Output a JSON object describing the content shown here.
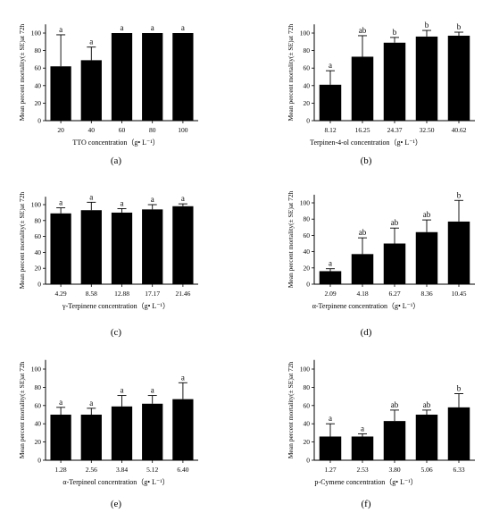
{
  "chart_data": [
    {
      "type": "bar",
      "panel": "(a)",
      "categories": [
        "20",
        "40",
        "60",
        "80",
        "100"
      ],
      "values": [
        62,
        69,
        100,
        100,
        100
      ],
      "errors": [
        36,
        15,
        0,
        0,
        0
      ],
      "letters": [
        "a",
        "a",
        "a",
        "a",
        "a"
      ],
      "xlabel": "TTO concentration（g• L⁻¹）",
      "ylabel": "Mean percent mortality(± SE)at 72h",
      "ylim": [
        0,
        110
      ],
      "yticks": [
        0,
        20,
        40,
        60,
        80,
        100
      ],
      "caption": "(a)"
    },
    {
      "type": "bar",
      "panel": "(b)",
      "categories": [
        "8.12",
        "16.25",
        "24.37",
        "32.50",
        "40.62"
      ],
      "values": [
        41,
        73,
        89,
        96,
        97
      ],
      "errors": [
        16,
        24,
        6,
        7,
        4
      ],
      "letters": [
        "a",
        "ab",
        "b",
        "b",
        "b"
      ],
      "xlabel": "Terpinen-4-ol concentration（g• L⁻¹）",
      "ylabel": "Mean percent mortality(± SE)at 72h",
      "ylim": [
        0,
        110
      ],
      "yticks": [
        0,
        20,
        40,
        60,
        80,
        100
      ],
      "caption": "(b)"
    },
    {
      "type": "bar",
      "panel": "(c)",
      "categories": [
        "4.29",
        "8.58",
        "12.88",
        "17.17",
        "21.46"
      ],
      "values": [
        89,
        93,
        90,
        94,
        98
      ],
      "errors": [
        7,
        10,
        5,
        6,
        3
      ],
      "letters": [
        "a",
        "a",
        "a",
        "a",
        "a"
      ],
      "xlabel": "γ-Terpinene concentration（g• L⁻¹）",
      "ylabel": "Mean percent mortality(± SE)at 72h",
      "ylim": [
        0,
        110
      ],
      "yticks": [
        0,
        20,
        40,
        60,
        80,
        100
      ],
      "caption": "(c)"
    },
    {
      "type": "bar",
      "panel": "(d)",
      "categories": [
        "2.09",
        "4.18",
        "6.27",
        "8.36",
        "10.45"
      ],
      "values": [
        16,
        37,
        50,
        64,
        77
      ],
      "errors": [
        3,
        20,
        19,
        15,
        26
      ],
      "letters": [
        "a",
        "ab",
        "ab",
        "ab",
        "b"
      ],
      "xlabel": "α-Terpinene concentration（g• L⁻¹）",
      "ylabel": "Mean percent mortality(± SE)at 72h",
      "ylim": [
        0,
        110
      ],
      "yticks": [
        0,
        20,
        40,
        60,
        80,
        100
      ],
      "caption": "(d)"
    },
    {
      "type": "bar",
      "panel": "(e)",
      "categories": [
        "1.28",
        "2.56",
        "3.84",
        "5.12",
        "6.40"
      ],
      "values": [
        50,
        50,
        59,
        62,
        67
      ],
      "errors": [
        8,
        7,
        12,
        9,
        18
      ],
      "letters": [
        "a",
        "a",
        "a",
        "a",
        "a"
      ],
      "xlabel": "α-Terpineol concentration（g• L⁻¹）",
      "ylabel": "Mean percent mortality(± SE)at 72h",
      "ylim": [
        0,
        110
      ],
      "yticks": [
        0,
        20,
        40,
        60,
        80,
        100
      ],
      "caption": "(e)"
    },
    {
      "type": "bar",
      "panel": "(f)",
      "categories": [
        "1.27",
        "2.53",
        "3.80",
        "5.06",
        "6.33"
      ],
      "values": [
        26,
        26,
        43,
        50,
        58
      ],
      "errors": [
        14,
        3,
        12,
        5,
        15
      ],
      "letters": [
        "a",
        "a",
        "ab",
        "ab",
        "b"
      ],
      "xlabel": "p-Cymene concentration（g• L⁻¹）",
      "ylabel": "Mean percent mortality(± SE)at 72h",
      "ylim": [
        0,
        110
      ],
      "yticks": [
        0,
        20,
        40,
        60,
        80,
        100
      ],
      "caption": "(f)"
    }
  ],
  "colors": {
    "bar": "#000000",
    "axis": "#000000",
    "background": "#ffffff"
  }
}
